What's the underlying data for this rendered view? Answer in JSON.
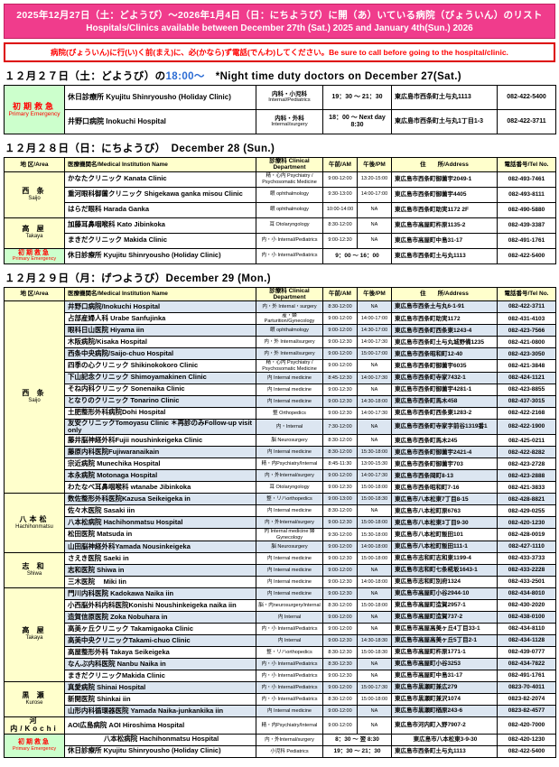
{
  "colors": {
    "banner_bg": "#f03c8c",
    "notice_red": "#ff0000",
    "header_bg": "#ffffcc",
    "area_bg": "#ffffcc",
    "emergency_bg": "#ccffcc",
    "emergency_text": "#ff0000",
    "alt_row_bg": "#dce6f1",
    "title_time_blue": "#2b6cd4"
  },
  "banner": {
    "line1": "2025年12月27日（土：どようび）～2026年1月4日（日：にちようび）に開（あ）いている病院（びょういん）のリスト",
    "line2": "Hospitals/Clinics available between December 27th (Sat.) 2025 and January 4th(Sun.) 2026"
  },
  "notice": "病院(びょういん)に行(い)く前(まえ)に、必(かなら)ず電話(でんわ)してください。Be sure to call before going to the hospital/clinic.",
  "table_headers": {
    "area": "地 区/Area",
    "name": "医療機関名/Medical Institution Name",
    "dept": "診療科 Clinical Department",
    "am": "午前/AM",
    "pm": "午後/PM",
    "address": "住　　所/Address",
    "tel": "電話番号/Tel No."
  },
  "sections": {
    "dec27": {
      "title_jp": "１２月２７日（土：どようび）の",
      "title_time": "18:00～",
      "title_en": "　*Night time duty doctors on December 27(Sat.)",
      "groups": [
        {
          "area_jp": "初期救急",
          "area_en": "Primary Emergency",
          "emergency": true,
          "rows": [
            {
              "name": "休日診療所 Kyujitu Shinryousho (Holiday Clinic)",
              "dept_jp": "内科・小児科",
              "dept_en": "Internal/Pediatrics",
              "time": "19：30 ～ 21：30",
              "address": "東広島市西条町土与丸1113",
              "tel": "082-422-5400"
            },
            {
              "name": "井野口病院 Inokuchi Hospital",
              "dept_jp": "内科・外科",
              "dept_en": "Internal/surgery",
              "time": "18：00 ～ Next day 8:30",
              "address": "東広島市西条町土与丸1丁目1-3",
              "tel": "082-422-3711"
            }
          ]
        }
      ]
    },
    "dec28": {
      "title": "１２月２８日（日：にちようび）　December 28 (Sun.)",
      "groups": [
        {
          "area_jp": "西 条",
          "area_en": "Saijo",
          "rows": [
            {
              "name": "かなたクリニック  Kanata Clinic",
              "dept": "精・心内 Psychiatry / Psychosomatic Medicine",
              "am": "9:00-12:00",
              "pm": "13:20-15:00",
              "address": "東広島市西条町御薗宇2049-1",
              "tel": "082-493-7461"
            },
            {
              "name": "重河眼科御薗クリニック Shigekawa ganka misou Clinic",
              "dept": "眼 ophthalmology",
              "am": "9:30-13:00",
              "pm": "14:00-17:00",
              "address": "東広島市西条町御薗宇4405",
              "tel": "082-493-8111"
            },
            {
              "name": "はらだ眼科  Harada Ganka",
              "dept": "眼 ophthalmology",
              "am": "10:00-14:00",
              "pm": "NA",
              "address": "東広島市西条町助実1172 2F",
              "tel": "082-490-5880"
            }
          ]
        },
        {
          "area_jp": "高 屋",
          "area_en": "Takaya",
          "rows": [
            {
              "name": "加藤耳鼻咽喉科 Kato Jibinkoka",
              "dept": "耳 Otolaryngology",
              "am": "8:30-12:00",
              "pm": "NA",
              "address": "東広島市高屋町杵原1135-2",
              "tel": "082-439-3387"
            },
            {
              "name": "まきだクリニック Makida Clinic",
              "dept": "内・小 Internal/Pediatrics",
              "am": "9:00-12:30",
              "pm": "NA",
              "address": "東広島市高屋町中島31-17",
              "tel": "082-491-1761"
            }
          ]
        },
        {
          "area_jp": "初期救急",
          "area_en": "Primary Emergency",
          "emergency": true,
          "rows": [
            {
              "name": "休日診療所 Kyujitu Shinryousho (Holiday Clinic)",
              "dept": "内・小 Internal/Pediatrics",
              "time": "9：00 ～ 16：00",
              "address": "東広島市西条町土与丸1113",
              "tel": "082-422-5400"
            }
          ]
        }
      ]
    },
    "dec29": {
      "title": "１２月２９日（月：げつようび）December 29 (Mon.)",
      "alt": true,
      "groups": [
        {
          "area_jp": "西 条",
          "area_en": "Saijo",
          "rows": [
            {
              "name": "井野口病院/Inokuchi Hospital",
              "dept": "内・外 Internal・surgery",
              "am": "8:30-12:00",
              "pm": "NA",
              "address": "東広島市西条土与丸6-1-91",
              "tel": "082-422-3711"
            },
            {
              "name": "占部産婦人科 Urabe Sanfujinka",
              "dept": "産・婦 Parturition/Gynecology",
              "am": "9:00-12:00",
              "pm": "14:00-17:00",
              "address": "東広島市西条町助実1172",
              "tel": "082-431-4103"
            },
            {
              "name": "眼科日山医院 Hiyama iin",
              "dept": "眼 ophthalmology",
              "am": "9:00-12:00",
              "pm": "14:30-17:00",
              "address": "東広島市西条町西条東1243-4",
              "tel": "082-423-7566"
            },
            {
              "name": "木阪病院/Kisaka Hospital",
              "dept": "内・外 Internal/surgery",
              "am": "9:00-12:30",
              "pm": "14:00-17:30",
              "address": "東広島市西条町土与丸城野備1235",
              "tel": "082-421-0800"
            },
            {
              "name": "西条中央病院/Saijo-chuo Hospital",
              "dept": "内・外 Internal/surgery",
              "am": "9:00-12:00",
              "pm": "15:00-17:00",
              "address": "東広島市西条昭和町12-40",
              "tel": "082-423-3050"
            },
            {
              "name": "四季の心クリニック Shikinokokoro Clinic",
              "dept": "精・心内 Psychiatry / Psychosomatic Medicine",
              "am": "9:00-12:00",
              "pm": "NA",
              "address": "東広島市西条町御薗宇6035",
              "tel": "082-421-3848"
            },
            {
              "name": "下山記念クリニック Shimoyamakinen Clinic",
              "dept": "内 Internal medicine",
              "am": "8:45-12:30",
              "pm": "14:00-17:30",
              "address": "東広島市西条町寺家7432-1",
              "tel": "082-424-1121"
            },
            {
              "name": "そね内科クリニック Sonenaika Clinic",
              "dept": "内 Internal medicine",
              "am": "9:00-12:30",
              "pm": "NA",
              "address": "東広島市西条町御薗宇4281-1",
              "tel": "082-423-8855"
            },
            {
              "name": "となりのクリニック  Tonarino Clinic",
              "dept": "内 Internal medicine",
              "am": "9:00-12:30",
              "pm": "14:30-18:00",
              "address": "東広島市西条町馬木458",
              "tel": "082-437-3015"
            },
            {
              "name": "土肥整形外科病院Dohi Hospital",
              "dept": "整 Orthopedics",
              "am": "9:00-12:30",
              "pm": "14:00-17:30",
              "address": "東広島市西条町西条東1283-2",
              "tel": "082-422-2168"
            },
            {
              "name": "友安クリニックTomoyasu Clinic ＊再診のみFollow-up visit only",
              "dept": "内・Internal",
              "am": "7:30-12:00",
              "pm": "NA",
              "address": "東広島市西条町寺家字前谷1319番1",
              "tel": "082-422-1900"
            },
            {
              "name": "藤井脳神経外科Fujii noushinkeigeka Clinic",
              "dept": "脳 Neurosurgery",
              "am": "8:30-12:00",
              "pm": "NA",
              "address": "東広島市西条町馬木245",
              "tel": "082-425-0211"
            },
            {
              "name": "藤原内科医院Fujiwaranaikain",
              "dept": "内 Internal medicine",
              "am": "8:30-12:00",
              "pm": "15:30-18:00",
              "address": "東広島市西条町御薗宇2421-4",
              "tel": "082-422-8282"
            },
            {
              "name": "宗近病院 Munechika Hospital",
              "dept": "精・内Psychiatry/Internal",
              "am": "8:45-11:30",
              "pm": "13:00-15:30",
              "address": "東広島市西条町御薗宇703",
              "tel": "082-423-2728"
            },
            {
              "name": "本永病院 Motonaga Hospital",
              "dept": "内・外Internal/surgery",
              "am": "9:00-12:00",
              "pm": "14:00-17:30",
              "address": "東広島市西条岡町8-13",
              "tel": "082-423-2888"
            },
            {
              "name": "わたなべ耳鼻咽喉科  wtanabe Jibinkoka",
              "dept": "耳 Otolaryngology",
              "am": "9:00-12:30",
              "pm": "15:00-18:00",
              "address": "東広島市西条昭和町7-16",
              "tel": "082-421-3833"
            }
          ]
        },
        {
          "area_jp": "八本松",
          "area_en": "Hachihonmatsu",
          "rows": [
            {
              "name": "数佐整形外科医院Kazusa Seikeigeka in",
              "dept": "整・リハorthopedics",
              "am": "9:00-13:00",
              "pm": "15:00-18:30",
              "address": "東広島市八本松東7丁目8-15",
              "tel": "082-428-8821"
            },
            {
              "name": "佐々木医院 Sasaki iin",
              "dept": "内 Internal medicine",
              "am": "8:30-12:00",
              "pm": "NA",
              "address": "東広島市八本松町原6763",
              "tel": "082-429-0255"
            },
            {
              "name": "八本松病院 Hachihonmatsu Hospital",
              "dept": "内・外Internal/surgery",
              "am": "9:00-12:30",
              "pm": "15:00-18:00",
              "address": "東広島市八本松東3丁目9-30",
              "tel": "082-420-1230"
            },
            {
              "name": "松田医院 Matsuda in",
              "dept": "内 Internal medicine 婦Gynecology",
              "am": "9:30-12:00",
              "pm": "15:30-18:00",
              "address": "東広島市八本松町飯田101",
              "tel": "082-428-0019"
            },
            {
              "name": "山田脳神経外科Yamada Nousinkeigeka",
              "dept": "脳 Neurosurgery",
              "am": "9:00-12:00",
              "pm": "14:00-18:00",
              "address": "東広島市八本松町飯田111-1",
              "tel": "082-427-1110"
            }
          ]
        },
        {
          "area_jp": "志 和",
          "area_en": "Shiwa",
          "rows": [
            {
              "name": "さえき医院 Saeki in",
              "dept": "内 Internal medicine",
              "am": "9:00-12:30",
              "pm": "15:00-18:00",
              "address": "東広島市志和町志和東1199-4",
              "tel": "082-433-3733"
            },
            {
              "name": "志和医院 Shiwa in",
              "dept": "内 Internal medicine",
              "am": "9:00-12:00",
              "pm": "NA",
              "address": "東広島市志和町七条椛坂1643-1",
              "tel": "082-433-2228"
            },
            {
              "name": "三木医院　 Miki Iin",
              "dept": "内 Internal medicine",
              "am": "9:00-12:30",
              "pm": "14:00-18:00",
              "address": "東広島市志和町別府1324",
              "tel": "082-433-2501"
            }
          ]
        },
        {
          "area_jp": "高 屋",
          "area_en": "Takaya",
          "rows": [
            {
              "name": "門川内科医院 Kadokawa Naika iin",
              "dept": "内 Internal medicine",
              "am": "9:00-12:30",
              "pm": "NA",
              "address": "東広島市高屋町小谷2944-10",
              "tel": "082-434-8010"
            },
            {
              "name": "小西脳外科内科医院Konishi Noushinkeigeka naika iin",
              "dept": "脳・内neurosurgery/internal",
              "am": "8:30-12:00",
              "pm": "15:00-18:00",
              "address": "東広島市高屋町造賀2957-1",
              "tel": "082-430-2020"
            },
            {
              "name": "造賀信原医院 Zoka Nobuhara in",
              "dept": "内 Internal",
              "am": "9:00-12:00",
              "pm": "NA",
              "address": "東広島市高屋町造賀737-2",
              "tel": "082-438-0100"
            },
            {
              "name": "高美ヶ丘クリニック Takamigaoka Clinic",
              "dept": "内・小 Internal/Pediatrics",
              "am": "9:00-12:00",
              "pm": "NA",
              "address": "東広島市高屋高美ヶ丘4丁目33-1",
              "tel": "082-434-8110"
            },
            {
              "name": "高美中央クリニックTakami-chuo Clinic",
              "dept": "内 Internal",
              "am": "9:00-12:30",
              "pm": "14:30-18:30",
              "address": "東広島市高屋高美ヶ丘5丁目2-1",
              "tel": "082-434-1128"
            },
            {
              "name": "高屋整形外科 Takaya Seikeigeka",
              "dept": "整・リハorthopedics",
              "am": "8:30-12:30",
              "pm": "15:00-18:30",
              "address": "東広島市高屋町杵原1771-1",
              "tel": "082-439-0777"
            },
            {
              "name": "なんぶ内科医院 Nanbu Naika in",
              "dept": "内・小 Internal/Pediatrics",
              "am": "8:30-12:30",
              "pm": "NA",
              "address": "東広島市高屋町小谷3253",
              "tel": "082-434-7822"
            },
            {
              "name": "まきだクリニックMakida Clinic",
              "dept": "内・小 Internal/Pediatrics",
              "am": "9:00-12:30",
              "pm": "NA",
              "address": "東広島市高屋町中島31-17",
              "tel": "082-491-1761"
            }
          ]
        },
        {
          "area_jp": "黒 瀬",
          "area_en": "Kurose",
          "rows": [
            {
              "name": "真愛病院 Shinai Hospital",
              "dept": "内・小 Internal/Pediatrics",
              "am": "9:00-12:00",
              "pm": "15:00-17:30",
              "address": "東広島市黒瀬町兼広279",
              "tel": "0823-70-4011"
            },
            {
              "name": "新開医院 Shinkai iin",
              "dept": "内・小 Internal/Pediatrics",
              "am": "8:30-12:00",
              "pm": "15:00-18:00",
              "address": "東広島市黒瀬町兼沢1074",
              "tel": "0823-82-2074"
            },
            {
              "name": "山形内科循環器医院 Yamada Naika-junkankika iin",
              "dept": "内 Internal medicine",
              "am": "9:00-12:00",
              "pm": "NA",
              "address": "東広島市黒瀬町楢原243-6",
              "tel": "0823-82-4577"
            }
          ]
        },
        {
          "area_jp": "河 内",
          "area_en": "Kochi",
          "inline": true,
          "rows": [
            {
              "name": "AOI広島病院 AOI Hiroshima Hospital",
              "dept": "精・内Psychiatry/Internal",
              "am": "9:00-12:00",
              "pm": "NA",
              "address": "東広島市河内町入野7907-2",
              "tel": "082-420-7000"
            }
          ]
        },
        {
          "area_jp": "初期救急",
          "area_en": "Primary Emergency",
          "emergency": true,
          "no_alt": true,
          "rows": [
            {
              "name": "八本松病院 Hachihonmatsu Hospital",
              "dept": "内・外Internal/surgery",
              "time": "8：30 ～ 翌 8:30",
              "address": "東広島市八本松東3-9-30",
              "tel": "082-420-1230",
              "center": true
            },
            {
              "name": "休日診療所 Kyujitu Shinryousho (Holiday Clinic)",
              "dept": "小児科  Pediatrics",
              "time": "19：30 ～ 21：30",
              "address": "東広島市西条町土与丸1113",
              "tel": "082-422-5400"
            }
          ]
        }
      ]
    }
  }
}
